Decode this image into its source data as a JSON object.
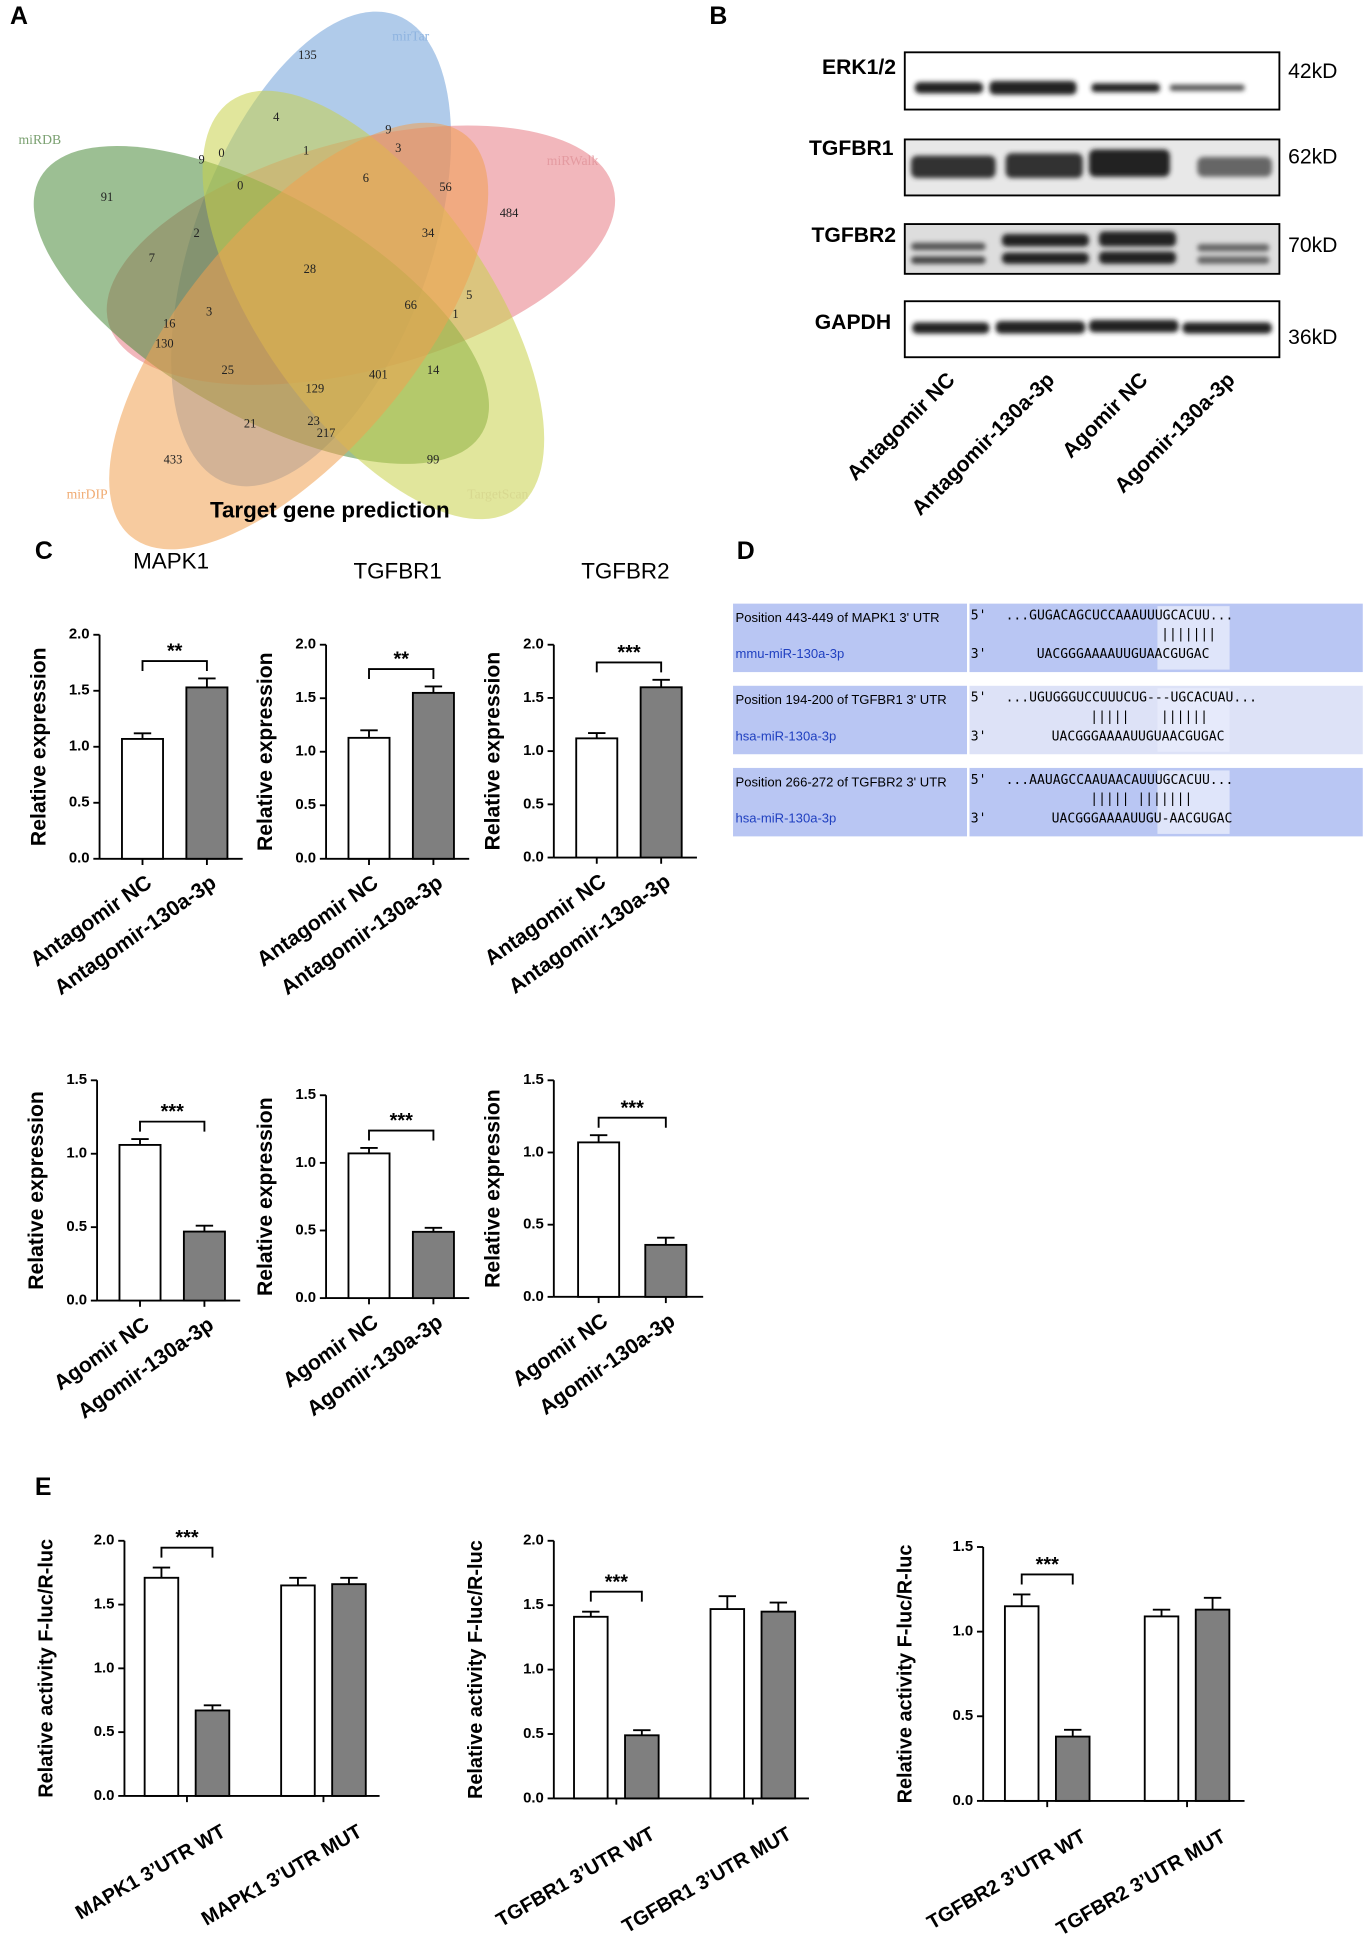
{
  "panels": [
    "A",
    "B",
    "C",
    "D",
    "E"
  ],
  "venn": {
    "title": "Target gene prediction",
    "sets": [
      "mirTar",
      "miRDB",
      "miRWalk",
      "mirDIP",
      "TargetScan"
    ],
    "regions": [
      135,
      4,
      9,
      3,
      1,
      0,
      9,
      0,
      6,
      56,
      484,
      91,
      2,
      7,
      28,
      34,
      66,
      5,
      1,
      3,
      16,
      130,
      25,
      129,
      401,
      14,
      21,
      23,
      217,
      433,
      99
    ]
  },
  "blot": {
    "proteins": [
      "ERK1/2",
      "TGFBR1",
      "TGFBR2",
      "GAPDH"
    ],
    "sizes": [
      "42kD",
      "62kD",
      "70kD",
      "36kD"
    ],
    "lanes": [
      "Antagomir NC",
      "Antagomir-130a-3p",
      "Agomir NC",
      "Agomir-130a-3p"
    ]
  },
  "alignments": [
    {
      "label": "Position 443-449 of MAPK1 3' UTR",
      "mirna_name": "mmu-miR-130a-3p",
      "prime5": "5'",
      "target": "...GUGACAGCUCCAAAUUUGCACUU...",
      "pairs": "|||||||",
      "prime3": "3'",
      "mirna": "UACGGGAAAAUUGUAACGUGAC"
    },
    {
      "label": "Position 194-200 of TGFBR1 3' UTR",
      "mirna_name": "hsa-miR-130a-3p",
      "prime5": "5'",
      "target": "...UGUGGGUCCUUUCUG---UGCACUAU...",
      "pairs": "|||||    ||||||",
      "prime3": "3'",
      "mirna": "UACGGGAAAAUUGUAACGUGAC"
    },
    {
      "label": "Position 266-272 of TGFBR2 3' UTR",
      "mirna_name": "hsa-miR-130a-3p",
      "prime5": "5'",
      "target": "...AAUAGCCAAUAACAUUUGCACUU...",
      "pairs": "||||| |||||||",
      "prime3": "3'",
      "mirna": "UACGGGAAAAUUGU-AACGUGAC"
    }
  ],
  "chart_data": [
    {
      "type": "bar",
      "title": "MAPK1",
      "ylabel": "Relative expression",
      "categories": [
        "Antagomir NC",
        "Antagomir-130a-3p"
      ],
      "values": [
        1.07,
        1.53
      ],
      "errors": [
        0.05,
        0.08
      ],
      "colors": [
        "#ffffff",
        "#7f7f7f"
      ],
      "ylim": [
        0,
        2
      ],
      "yticks": [
        {
          "value": 0,
          "label": "0.0"
        },
        0.5,
        {
          "value": 1,
          "label": "1.0"
        },
        1.5,
        {
          "value": 2,
          "label": "2.0"
        }
      ],
      "significance": "**"
    },
    {
      "type": "bar",
      "title": "TGFBR1",
      "ylabel": "Relative expression",
      "categories": [
        "Antagomir NC",
        "Antagomir-130a-3p"
      ],
      "values": [
        1.13,
        1.55
      ],
      "errors": [
        0.07,
        0.06
      ],
      "colors": [
        "#ffffff",
        "#7f7f7f"
      ],
      "ylim": [
        0,
        2
      ],
      "yticks": [
        {
          "value": 0,
          "label": "0.0"
        },
        0.5,
        {
          "value": 1,
          "label": "1.0"
        },
        1.5,
        {
          "value": 2,
          "label": "2.0"
        }
      ],
      "significance": "**"
    },
    {
      "type": "bar",
      "title": "TGFBR2",
      "ylabel": "Relative expression",
      "categories": [
        "Antagomir NC",
        "Antagomir-130a-3p"
      ],
      "values": [
        1.12,
        1.6
      ],
      "errors": [
        0.05,
        0.07
      ],
      "colors": [
        "#ffffff",
        "#7f7f7f"
      ],
      "ylim": [
        0,
        2
      ],
      "yticks": [
        {
          "value": 0,
          "label": "0.0"
        },
        0.5,
        {
          "value": 1,
          "label": "1.0"
        },
        1.5,
        {
          "value": 2,
          "label": "2.0"
        }
      ],
      "significance": "***"
    },
    {
      "type": "bar",
      "ylabel": "Relative expression",
      "categories": [
        "Agomir NC",
        "Agomir-130a-3p"
      ],
      "values": [
        1.06,
        0.47
      ],
      "errors": [
        0.04,
        0.04
      ],
      "colors": [
        "#ffffff",
        "#7f7f7f"
      ],
      "ylim": [
        0,
        1.5
      ],
      "yticks": [
        {
          "value": 0,
          "label": "0.0"
        },
        0.5,
        {
          "value": 1,
          "label": "1.0"
        },
        1.5
      ],
      "significance": "***"
    },
    {
      "type": "bar",
      "ylabel": "Relative expression",
      "categories": [
        "Agomir NC",
        "Agomir-130a-3p"
      ],
      "values": [
        1.07,
        0.49
      ],
      "errors": [
        0.04,
        0.03
      ],
      "colors": [
        "#ffffff",
        "#7f7f7f"
      ],
      "ylim": [
        0,
        1.5
      ],
      "yticks": [
        {
          "value": 0,
          "label": "0.0"
        },
        0.5,
        {
          "value": 1,
          "label": "1.0"
        },
        1.5
      ],
      "significance": "***"
    },
    {
      "type": "bar",
      "ylabel": "Relative expression",
      "categories": [
        "Agomir NC",
        "Agomir-130a-3p"
      ],
      "values": [
        1.07,
        0.36
      ],
      "errors": [
        0.05,
        0.05
      ],
      "colors": [
        "#ffffff",
        "#7f7f7f"
      ],
      "ylim": [
        0,
        1.5
      ],
      "yticks": [
        {
          "value": 0,
          "label": "0.0"
        },
        0.5,
        {
          "value": 1,
          "label": "1.0"
        },
        1.5
      ],
      "significance": "***"
    },
    {
      "type": "grouped_bar",
      "ylabel": "Relative activity F-luc/R-luc",
      "categories": [
        "MAPK1 3’UTR WT",
        "MAPK1 3’UTR MUT"
      ],
      "series": [
        {
          "color": "#ffffff",
          "values": [
            1.71,
            1.65
          ],
          "errors": [
            0.08,
            0.06
          ]
        },
        {
          "color": "#7f7f7f",
          "values": [
            0.67,
            1.66
          ],
          "errors": [
            0.04,
            0.05
          ]
        }
      ],
      "ylim": [
        0,
        2
      ],
      "yticks": [
        {
          "value": 0,
          "label": "0.0"
        },
        0.5,
        {
          "value": 1,
          "label": "1.0"
        },
        1.5,
        {
          "value": 2,
          "label": "2.0"
        }
      ],
      "significance": "***"
    },
    {
      "type": "grouped_bar",
      "ylabel": "Relative activity F-luc/R-luc",
      "categories": [
        "TGFBR1 3’UTR WT",
        "TGFBR1 3’UTR MUT"
      ],
      "series": [
        {
          "color": "#ffffff",
          "values": [
            1.41,
            1.47
          ],
          "errors": [
            0.04,
            0.1
          ]
        },
        {
          "color": "#7f7f7f",
          "values": [
            0.49,
            1.45
          ],
          "errors": [
            0.04,
            0.07
          ]
        }
      ],
      "ylim": [
        0,
        2
      ],
      "yticks": [
        {
          "value": 0,
          "label": "0.0"
        },
        0.5,
        {
          "value": 1,
          "label": "1.0"
        },
        1.5,
        {
          "value": 2,
          "label": "2.0"
        }
      ],
      "significance": "***"
    },
    {
      "type": "grouped_bar",
      "ylabel": "Relative activity F-luc/R-luc",
      "categories": [
        "TGFBR2 3’UTR WT",
        "TGFBR2 3’UTR MUT"
      ],
      "series": [
        {
          "color": "#ffffff",
          "values": [
            1.15,
            1.09
          ],
          "errors": [
            0.07,
            0.04
          ]
        },
        {
          "color": "#7f7f7f",
          "values": [
            0.38,
            1.13
          ],
          "errors": [
            0.04,
            0.07
          ]
        }
      ],
      "ylim": [
        0,
        1.5
      ],
      "yticks": [
        {
          "value": 0,
          "label": "0.0"
        },
        0.5,
        {
          "value": 1,
          "label": "1.0"
        },
        1.5
      ],
      "significance": "***"
    }
  ]
}
